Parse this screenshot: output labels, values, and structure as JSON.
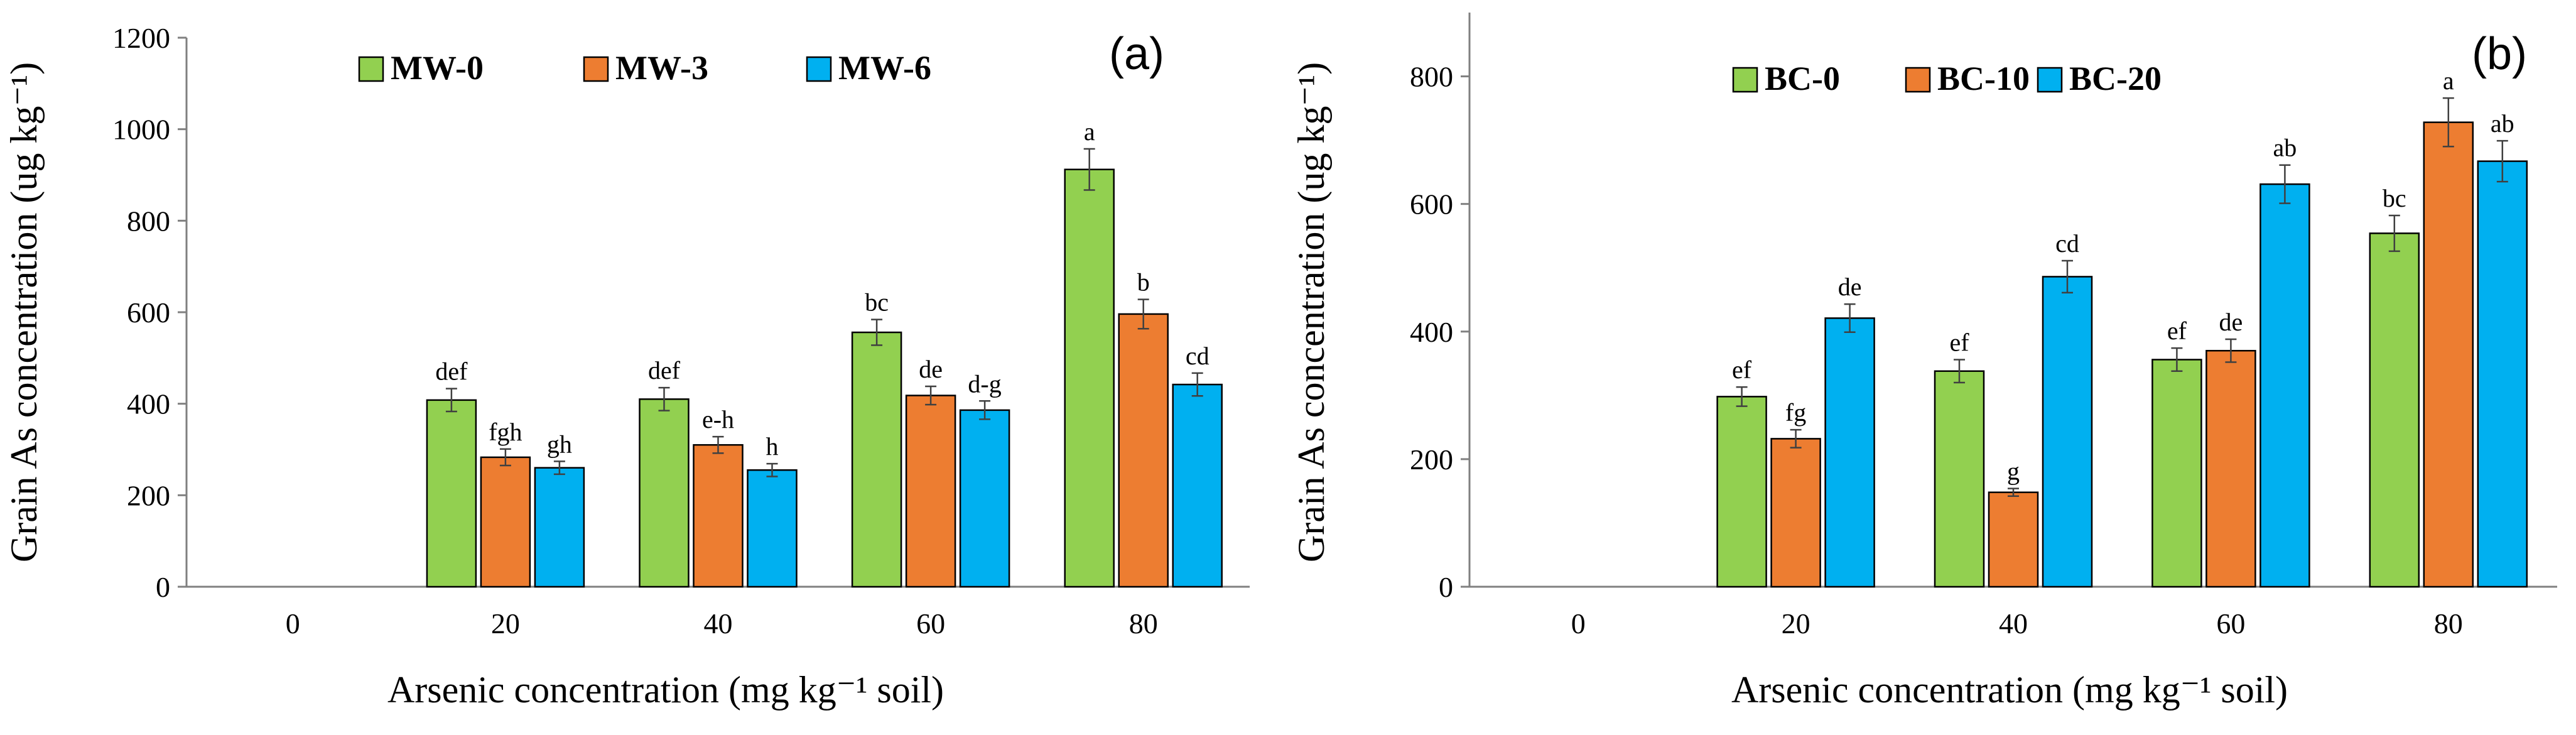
{
  "chart_data": [
    {
      "type": "bar",
      "panel_label": "(a)",
      "categories": [
        "0",
        "20",
        "40",
        "60",
        "80"
      ],
      "series": [
        {
          "name": "MW-0",
          "color": "#92d050",
          "values": [
            null,
            408,
            410,
            556,
            912
          ],
          "errors": [
            null,
            25,
            25,
            28,
            45
          ],
          "labels": [
            "",
            "def",
            "def",
            "bc",
            "a"
          ]
        },
        {
          "name": "MW-3",
          "color": "#ed7d31",
          "values": [
            null,
            283,
            310,
            418,
            596
          ],
          "errors": [
            null,
            18,
            18,
            20,
            32
          ],
          "labels": [
            "",
            "fgh",
            "e-h",
            "de",
            "b"
          ]
        },
        {
          "name": "MW-6",
          "color": "#00b0f0",
          "values": [
            null,
            260,
            255,
            386,
            442
          ],
          "errors": [
            null,
            14,
            14,
            20,
            25
          ],
          "labels": [
            "",
            "gh",
            "h",
            "d-g",
            "cd"
          ]
        }
      ],
      "ylabel": "Grain As concentration (ug kg⁻¹)",
      "xlabel": "Arsenic concentration (mg kg⁻¹ soil)",
      "ylim": [
        0,
        1200
      ],
      "yticks": [
        "0",
        "200",
        "400",
        "600",
        "800",
        "1000",
        "1200"
      ],
      "ytick_values": [
        0,
        200,
        400,
        600,
        800,
        1000,
        1200
      ],
      "legend_position": "top-center"
    },
    {
      "type": "bar",
      "panel_label": "(b)",
      "categories": [
        "0",
        "20",
        "40",
        "60",
        "80"
      ],
      "series": [
        {
          "name": "BC-0",
          "color": "#92d050",
          "values": [
            null,
            298,
            338,
            356,
            554
          ],
          "errors": [
            null,
            15,
            18,
            18,
            28
          ],
          "labels": [
            "",
            "ef",
            "ef",
            "ef",
            "bc"
          ]
        },
        {
          "name": "BC-10",
          "color": "#ed7d31",
          "values": [
            null,
            232,
            148,
            370,
            728
          ],
          "errors": [
            null,
            14,
            6,
            18,
            38
          ],
          "labels": [
            "",
            "fg",
            "g",
            "de",
            "a"
          ]
        },
        {
          "name": "BC-20",
          "color": "#00b0f0",
          "values": [
            null,
            421,
            486,
            631,
            667
          ],
          "errors": [
            null,
            22,
            25,
            30,
            32
          ],
          "labels": [
            "",
            "de",
            "cd",
            "ab",
            "ab"
          ]
        }
      ],
      "ylabel": "Grain As concentration (ug kg⁻¹)",
      "xlabel": "Arsenic concentration (mg kg⁻¹ soil)",
      "ylim": [
        0,
        900
      ],
      "yticks": [
        "0",
        "200",
        "400",
        "600",
        "800"
      ],
      "ytick_values": [
        0,
        200,
        400,
        600,
        800
      ],
      "legend_position": "top-center"
    }
  ]
}
